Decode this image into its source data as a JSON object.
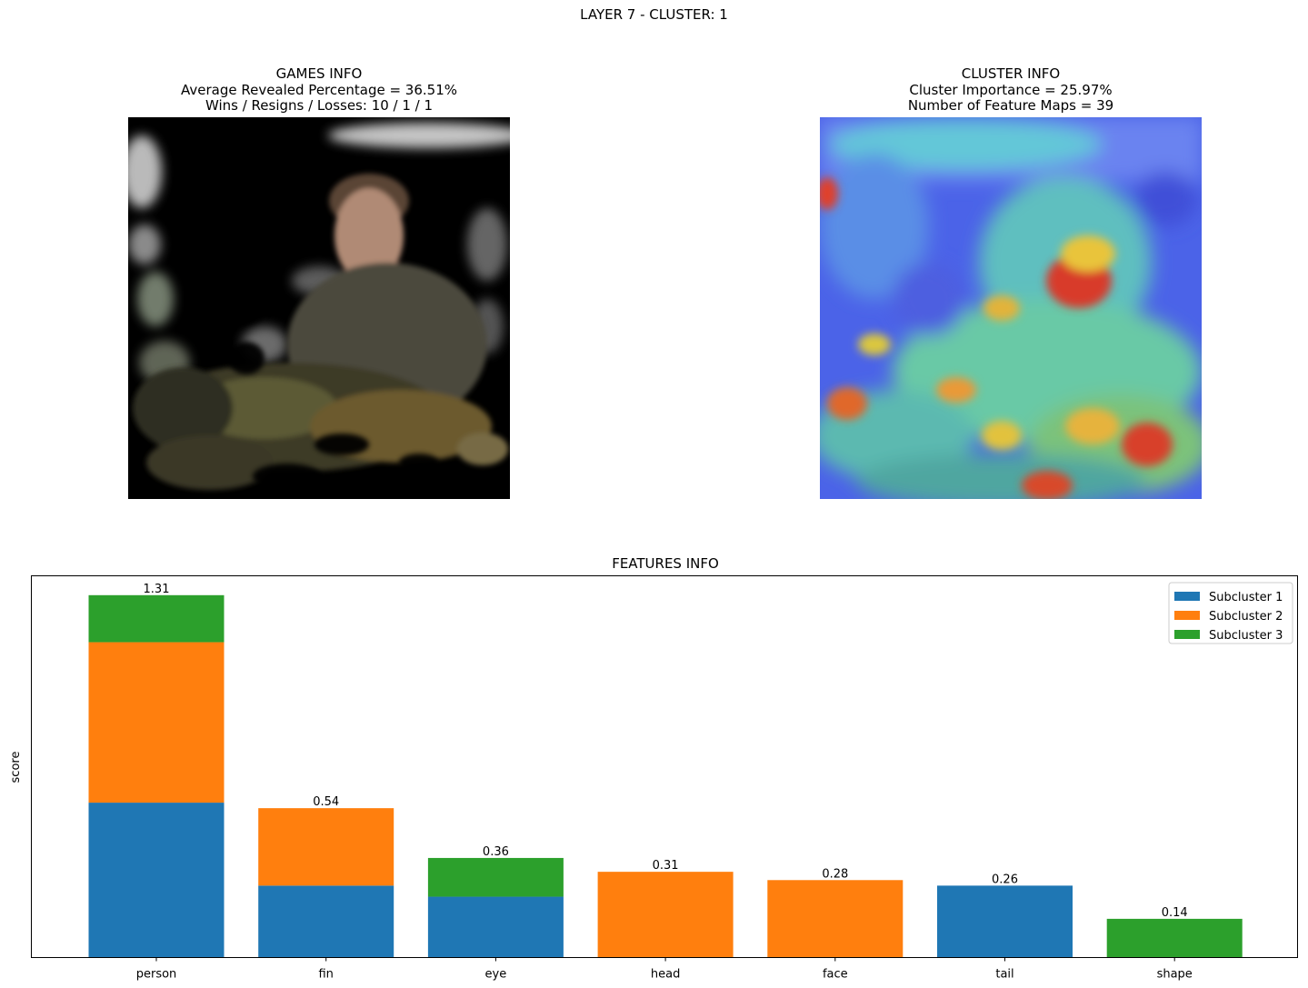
{
  "suptitle": "LAYER 7 - CLUSTER: 1",
  "games_panel": {
    "title": "GAMES INFO",
    "line1": "Average Revealed Percentage = 36.51%",
    "line2": "Wins / Resigns / Losses: 10 / 1 / 1"
  },
  "cluster_panel": {
    "title": "CLUSTER INFO",
    "line1": "Cluster Importance = 25.97%",
    "line2": "Number of Feature Maps = 39"
  },
  "chart_data": {
    "type": "bar",
    "stacked": true,
    "title": "FEATURES INFO",
    "xlabel": "",
    "ylabel": "score",
    "ylim": [
      0,
      1.38
    ],
    "yticks_visible": false,
    "categories": [
      "person",
      "fin",
      "eye",
      "head",
      "face",
      "tail",
      "shape"
    ],
    "series": [
      {
        "name": "Subcluster 1",
        "color": "#1f77b4",
        "values": [
          0.56,
          0.26,
          0.22,
          0,
          0,
          0.26,
          0
        ]
      },
      {
        "name": "Subcluster 2",
        "color": "#ff7f0e",
        "values": [
          0.58,
          0.28,
          0,
          0.31,
          0.28,
          0,
          0
        ]
      },
      {
        "name": "Subcluster 3",
        "color": "#2ca02c",
        "values": [
          0.17,
          0,
          0.14,
          0,
          0,
          0,
          0.14
        ]
      }
    ],
    "totals": [
      "1.31",
      "0.54",
      "0.36",
      "0.31",
      "0.28",
      "0.26",
      "0.14"
    ],
    "legend": "top-right"
  }
}
